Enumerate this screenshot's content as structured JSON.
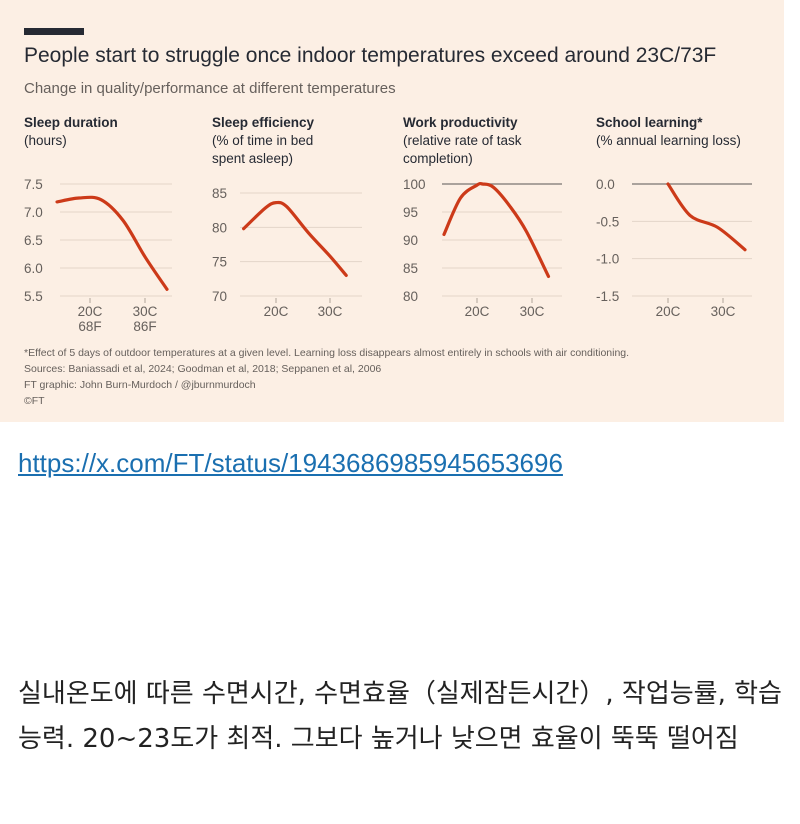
{
  "header": {
    "title": "People start to struggle once indoor temperatures exceed around 23C/73F",
    "subtitle": "Change in quality/performance at different temperatures"
  },
  "chart_data": [
    {
      "type": "line",
      "title": "Sleep duration",
      "ylabel": "(hours)",
      "x": [
        14,
        18,
        22,
        26,
        30,
        34
      ],
      "values": [
        7.18,
        7.25,
        7.22,
        6.85,
        6.2,
        5.62
      ],
      "ylim": [
        5.5,
        7.5
      ],
      "yticks": [
        "7.5",
        "7.0",
        "6.5",
        "6.0",
        "5.5"
      ],
      "yticks_values": [
        7.5,
        7.0,
        6.5,
        6.0,
        5.5
      ],
      "xticks": [
        "20C",
        "30C"
      ],
      "xticks_values": [
        20,
        30
      ],
      "xticks_secondary": [
        "68F",
        "86F"
      ],
      "color": "#cc3a19"
    },
    {
      "type": "line",
      "title": "Sleep efficiency",
      "ylabel": "(% of time in bed spent asleep)",
      "x": [
        14,
        18,
        20,
        22,
        26,
        30,
        33
      ],
      "values": [
        79.8,
        82.8,
        83.6,
        83.0,
        79.2,
        75.8,
        73.0
      ],
      "ylim": [
        70,
        85
      ],
      "yticks": [
        "85",
        "80",
        "75",
        "70"
      ],
      "yticks_values": [
        85,
        80,
        75,
        70
      ],
      "xticks": [
        "20C",
        "30C"
      ],
      "xticks_values": [
        20,
        30
      ],
      "color": "#cc3a19"
    },
    {
      "type": "line",
      "title": "Work productivity",
      "ylabel": "(relative rate of task completion)",
      "x": [
        14,
        17,
        20,
        21,
        23,
        26,
        29,
        33
      ],
      "values": [
        91,
        97.5,
        99.8,
        100,
        99.4,
        96.0,
        91.5,
        83.5
      ],
      "ylim": [
        80,
        100
      ],
      "yticks": [
        "100",
        "95",
        "90",
        "85",
        "80"
      ],
      "yticks_values": [
        100,
        95,
        90,
        85,
        80
      ],
      "reference_line": 100,
      "xticks": [
        "20C",
        "30C"
      ],
      "xticks_values": [
        20,
        30
      ],
      "color": "#cc3a19"
    },
    {
      "type": "line",
      "title": "School learning*",
      "ylabel": "(% annual learning loss)",
      "x": [
        20,
        24,
        29,
        34
      ],
      "values": [
        0.0,
        -0.42,
        -0.58,
        -0.88
      ],
      "ylim": [
        -1.5,
        0.0
      ],
      "yticks": [
        "0.0",
        "-0.5",
        "-1.0",
        "-1.5"
      ],
      "yticks_values": [
        0.0,
        -0.5,
        -1.0,
        -1.5
      ],
      "reference_line": 0,
      "xticks": [
        "20C",
        "30C"
      ],
      "xticks_values": [
        20,
        30
      ],
      "color": "#cc3a19"
    }
  ],
  "panels": [
    {
      "title": "Sleep duration",
      "sub1": "(hours)",
      "sub2": ""
    },
    {
      "title": "Sleep efficiency",
      "sub1": "(% of time in bed",
      "sub2": "spent asleep)"
    },
    {
      "title": "Work productivity",
      "sub1": "(relative rate of task",
      "sub2": "completion)"
    },
    {
      "title": "School learning*",
      "sub1": "(% annual learning loss)",
      "sub2": ""
    }
  ],
  "notes": {
    "footnote": "*Effect of 5 days of outdoor temperatures at a given level. Learning loss disappears almost entirely in schools with air conditioning.",
    "sources": "Sources: Baniassadi et al, 2024; Goodman et al, 2018; Seppanen et al, 2006",
    "credit": "FT graphic: John Burn-Murdoch / @jburnmurdoch",
    "copyright": "©FT"
  },
  "post": {
    "link": "https://x.com/FT/status/1943686985945653696",
    "text": "실내온도에 따른 수면시간, 수면효율（실제잠든시간）, 작업능률, 학습능력. 20~23도가 최적. 그보다 높거나 낮으면 효율이 뚝뚝 떨어짐"
  },
  "colors": {
    "background": "#fcefe4",
    "line": "#cc3a19",
    "text": "#262a33",
    "muted": "#66605c",
    "link": "#1a6fb0"
  }
}
